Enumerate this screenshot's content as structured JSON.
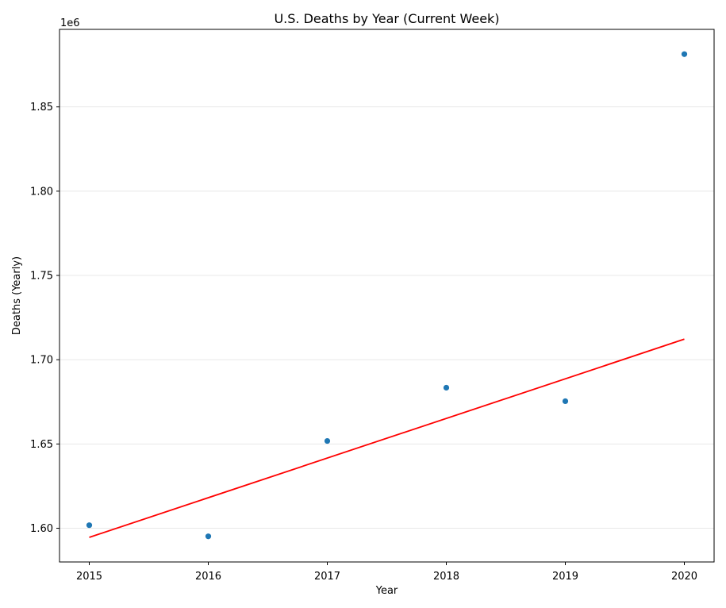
{
  "chart_data": {
    "type": "scatter",
    "title": "U.S. Deaths by Year (Current Week)",
    "xlabel": "Year",
    "ylabel": "Deaths (Yearly)",
    "y_offset_text": "1e6",
    "x": [
      2015,
      2016,
      2017,
      2018,
      2019,
      2020
    ],
    "y": [
      1601800,
      1595200,
      1651800,
      1683400,
      1675400,
      1881300
    ],
    "point_color": "#1f77b4",
    "trend_line": {
      "color": "#ff0000",
      "x": [
        2015,
        2020
      ],
      "y": [
        1594600,
        1712200
      ]
    },
    "xlim": [
      2014.75,
      2020.25
    ],
    "ylim": [
      1580000,
      1896000
    ],
    "x_ticks": [
      "2015",
      "2016",
      "2017",
      "2018",
      "2019",
      "2020"
    ],
    "y_ticks": [
      "1.60",
      "1.65",
      "1.70",
      "1.75",
      "1.80",
      "1.85"
    ],
    "grid": "y-only"
  }
}
